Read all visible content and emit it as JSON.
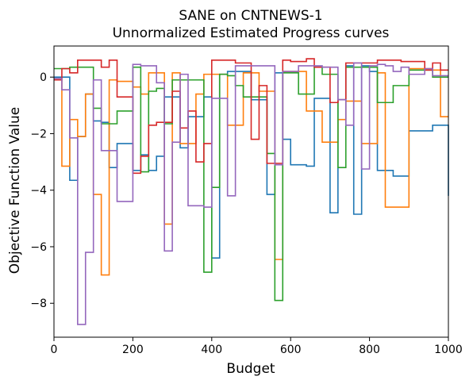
{
  "chart_data": {
    "type": "line",
    "drawstyle": "steps-post",
    "title": "SANE on CNTNEWS-1",
    "subtitle": "Unnormalized Estimated Progress curves",
    "xlabel": "Budget",
    "ylabel": "Objective Function Value",
    "xlim": [
      0,
      1000
    ],
    "ylim": [
      -9.2,
      1.1
    ],
    "xticks": [
      0,
      200,
      400,
      600,
      800,
      1000
    ],
    "yticks": [
      0,
      -2,
      -4,
      -6,
      -8
    ],
    "grid": false,
    "legend": "none",
    "series": [
      {
        "color": "#1f77b4",
        "x": [
          0,
          40,
          60,
          80,
          100,
          120,
          140,
          160,
          200,
          220,
          240,
          260,
          280,
          320,
          340,
          380,
          400,
          420,
          440,
          500,
          540,
          560,
          580,
          600,
          640,
          660,
          700,
          720,
          740,
          760,
          780,
          800,
          820,
          860,
          900,
          920,
          960,
          1000
        ],
        "y": [
          0.0,
          -3.65,
          -2.1,
          -0.6,
          -1.55,
          -1.6,
          -3.2,
          -2.35,
          -3.3,
          -2.75,
          -3.3,
          -2.8,
          -0.7,
          -2.5,
          -1.4,
          -0.7,
          -6.4,
          0.1,
          0.2,
          -0.8,
          -4.15,
          0.15,
          -2.2,
          -3.1,
          -3.15,
          -0.75,
          -4.8,
          -0.8,
          0.4,
          -4.85,
          0.4,
          0.2,
          -3.3,
          -3.5,
          -1.9,
          -1.9,
          -1.7,
          -4.2
        ]
      },
      {
        "color": "#ff7f0e",
        "x": [
          0,
          20,
          40,
          60,
          80,
          100,
          120,
          140,
          160,
          200,
          220,
          240,
          280,
          300,
          320,
          360,
          380,
          420,
          440,
          480,
          520,
          560,
          580,
          640,
          680,
          720,
          740,
          780,
          820,
          840,
          900,
          960,
          980,
          1000
        ],
        "y": [
          -0.05,
          -3.15,
          -1.5,
          -2.1,
          -0.6,
          -4.15,
          -7.0,
          -0.1,
          -0.15,
          -0.35,
          -0.6,
          0.15,
          -5.2,
          0.15,
          -2.35,
          -0.6,
          0.1,
          0.1,
          -1.7,
          0.15,
          -0.5,
          -6.45,
          0.2,
          -1.2,
          -2.3,
          -1.5,
          -0.85,
          -2.35,
          0.15,
          -4.6,
          0.3,
          0.25,
          -1.4,
          -1.4
        ]
      },
      {
        "color": "#2ca02c",
        "x": [
          0,
          40,
          80,
          100,
          120,
          160,
          200,
          220,
          240,
          260,
          280,
          300,
          360,
          380,
          400,
          420,
          440,
          460,
          480,
          540,
          560,
          580,
          620,
          660,
          680,
          720,
          740,
          820,
          860,
          900,
          960,
          1000
        ],
        "y": [
          0.3,
          0.35,
          0.35,
          -1.1,
          -1.65,
          -1.2,
          0.35,
          -3.35,
          -0.5,
          -0.4,
          -1.65,
          -0.1,
          -0.1,
          -6.9,
          -3.9,
          0.1,
          0.05,
          -0.3,
          -0.7,
          -2.7,
          -7.9,
          0.15,
          -0.6,
          0.35,
          0.1,
          -3.2,
          0.35,
          -0.9,
          -0.3,
          0.25,
          0.0,
          0.0
        ]
      },
      {
        "color": "#d62728",
        "x": [
          0,
          20,
          40,
          60,
          120,
          140,
          160,
          200,
          220,
          240,
          260,
          300,
          320,
          340,
          360,
          380,
          400,
          440,
          460,
          500,
          500,
          520,
          540,
          580,
          600,
          640,
          660,
          700,
          720,
          740,
          820,
          880,
          900,
          940,
          960,
          980,
          1000
        ],
        "y": [
          -0.1,
          0.3,
          0.15,
          0.6,
          0.35,
          0.6,
          -0.7,
          -3.4,
          -2.8,
          -1.7,
          -1.6,
          -0.5,
          -1.8,
          -1.2,
          -3.0,
          -2.35,
          0.6,
          0.6,
          0.5,
          0.2,
          -2.2,
          -0.3,
          -3.05,
          0.6,
          0.55,
          0.65,
          0.35,
          -0.9,
          -0.8,
          0.5,
          0.6,
          0.55,
          0.55,
          0.25,
          0.5,
          0.25,
          0.25
        ]
      },
      {
        "color": "#9467bd",
        "x": [
          0,
          20,
          40,
          60,
          80,
          100,
          120,
          160,
          200,
          220,
          260,
          280,
          300,
          320,
          340,
          380,
          400,
          440,
          460,
          520,
          560,
          580,
          620,
          660,
          680,
          720,
          740,
          760,
          780,
          800,
          820,
          840,
          860,
          880,
          900,
          940,
          960,
          1000
        ],
        "y": [
          -0.05,
          -0.45,
          -2.15,
          -8.75,
          -6.2,
          -0.1,
          -2.6,
          -4.4,
          0.45,
          0.4,
          -0.2,
          -6.15,
          -2.3,
          0.1,
          -4.55,
          -4.6,
          -0.75,
          -4.2,
          0.4,
          0.4,
          -3.1,
          0.2,
          0.4,
          0.4,
          0.35,
          -0.8,
          -1.7,
          0.5,
          -3.25,
          0.4,
          0.45,
          0.4,
          0.2,
          0.35,
          0.1,
          0.3,
          0.05,
          0.05
        ]
      }
    ]
  }
}
